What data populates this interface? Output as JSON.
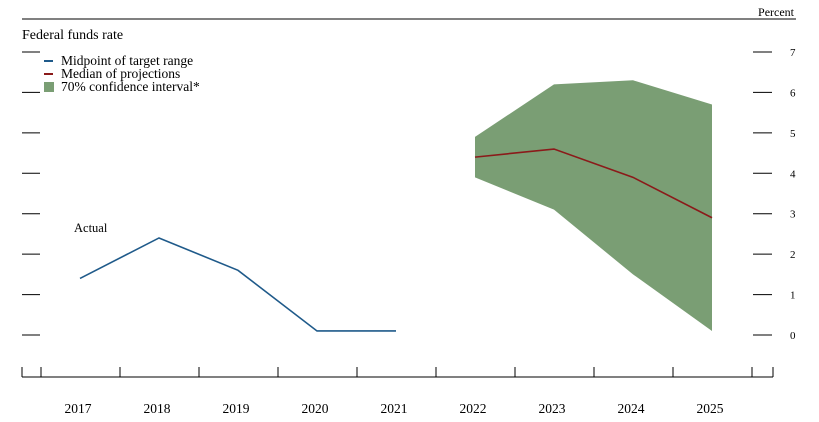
{
  "chart_data": {
    "type": "line",
    "title": "Federal funds rate",
    "unit_label": "Percent",
    "xlabel": "",
    "ylabel": "",
    "categories": [
      "2017",
      "2018",
      "2019",
      "2020",
      "2021",
      "2022",
      "2023",
      "2024",
      "2025"
    ],
    "ylim": [
      0,
      7
    ],
    "y_ticks": [
      "0",
      "1",
      "2",
      "3",
      "4",
      "5",
      "6",
      "7"
    ],
    "grid": false,
    "legend_position": "top-left",
    "annotation": "Actual",
    "series": [
      {
        "name": "Midpoint of target range",
        "color": "#1f5a8a",
        "x": [
          "2017",
          "2018",
          "2019",
          "2020",
          "2021"
        ],
        "values": [
          1.4,
          2.4,
          1.6,
          0.1,
          0.1
        ]
      },
      {
        "name": "Median of projections",
        "color": "#8b1a1a",
        "x": [
          "2022",
          "2023",
          "2024",
          "2025"
        ],
        "values": [
          4.4,
          4.6,
          3.9,
          2.9
        ]
      }
    ],
    "band": {
      "name": "70% confidence interval*",
      "color": "#7a9e74",
      "x": [
        "2022",
        "2023",
        "2024",
        "2025"
      ],
      "lower": [
        3.9,
        3.1,
        1.5,
        0.1
      ],
      "upper": [
        4.9,
        6.2,
        6.3,
        5.7
      ]
    }
  }
}
